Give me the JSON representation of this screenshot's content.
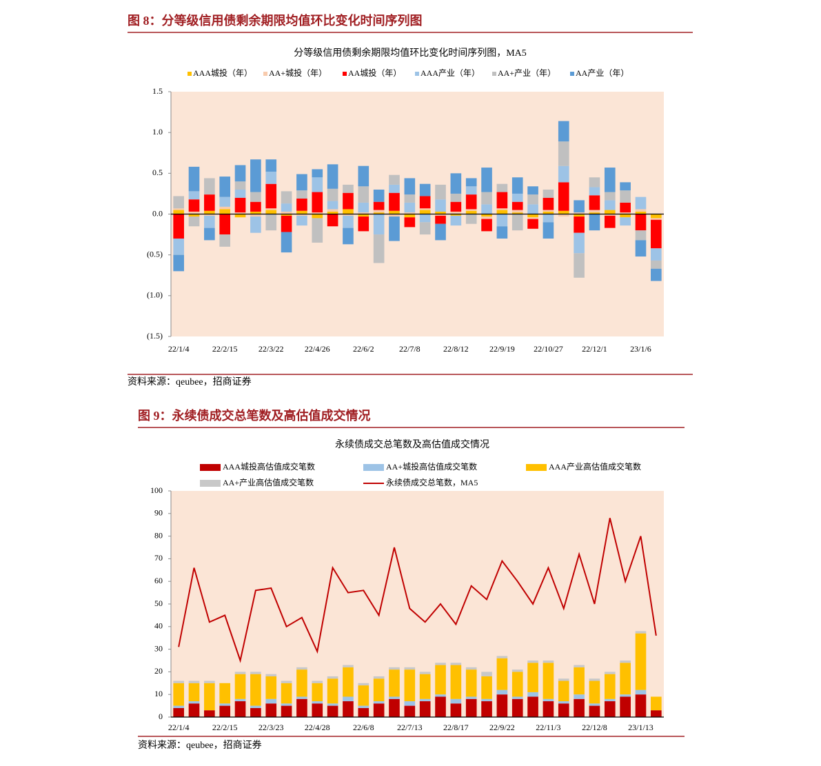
{
  "chart_data": [
    {
      "type": "bar",
      "stacked": true,
      "figure_label": "图 8：分等级信用债剩余期限均值环比变化时间序列图",
      "title": "分等级信用债剩余期限均值环比变化时间序列图，MA5",
      "source": "资料来源：qeubee，招商证券",
      "background": "#fbe5d6",
      "categories": [
        "22/1/4",
        null,
        null,
        "22/2/15",
        null,
        null,
        "22/3/22",
        null,
        null,
        "22/4/26",
        null,
        null,
        "22/6/2",
        null,
        null,
        "22/7/8",
        null,
        null,
        "22/8/12",
        null,
        null,
        "22/9/19",
        null,
        null,
        "22/10/27",
        null,
        null,
        "22/12/1",
        null,
        null,
        "23/1/6",
        null
      ],
      "ylim": [
        -1.5,
        1.5
      ],
      "yticks": [
        {
          "value": -1.5,
          "label": "(1.5)"
        },
        {
          "value": -1,
          "label": "(1.0)"
        },
        {
          "value": -0.5,
          "label": "(0.5)"
        },
        {
          "value": 0,
          "label": "0.0"
        },
        0.5,
        {
          "value": 1,
          "label": "1.0"
        },
        1.5
      ],
      "series": [
        {
          "name": "AAA城投（年）",
          "color": "#ffc000",
          "values": [
            0.05,
            -0.03,
            0.04,
            0.06,
            -0.04,
            0.03,
            0.05,
            -0.02,
            0.04,
            -0.05,
            0.03,
            0.06,
            -0.03,
            0.02,
            0.04,
            -0.04,
            0.05,
            0.03,
            -0.02,
            0.04,
            -0.03,
            0.05,
            0.02,
            -0.04,
            0.03,
            0.04,
            -0.03,
            0.02,
            0.05,
            -0.04,
            0.03,
            -0.05
          ]
        },
        {
          "name": "AA+城投（年）",
          "color": "#f8cbad",
          "values": [
            0.02,
            0.03,
            -0.02,
            0.03,
            0.02,
            -0.03,
            0.02,
            0.03,
            -0.02,
            0.02,
            0.03,
            -0.02,
            0.02,
            0.03,
            -0.03,
            0.02,
            0.02,
            -0.02,
            0.03,
            0.02,
            -0.03,
            0.02,
            0.03,
            -0.02,
            0.02,
            -0.03,
            0.02,
            0.03,
            -0.02,
            0.02,
            0.03,
            -0.02
          ]
        },
        {
          "name": "AA城投（年）",
          "color": "#ff0000",
          "values": [
            -0.3,
            0.15,
            0.2,
            -0.25,
            0.18,
            0.12,
            0.3,
            -0.2,
            0.15,
            0.25,
            -0.15,
            0.2,
            -0.18,
            0.1,
            0.22,
            -0.12,
            0.15,
            -0.1,
            0.12,
            0.18,
            -0.15,
            0.2,
            0.1,
            -0.12,
            0.15,
            0.35,
            -0.2,
            0.18,
            -0.15,
            0.12,
            -0.2,
            -0.35
          ]
        },
        {
          "name": "AAA产业（年）",
          "color": "#9dc3e6",
          "values": [
            -0.2,
            0.1,
            -0.15,
            0.12,
            0.1,
            -0.2,
            0.15,
            0.1,
            -0.12,
            0.18,
            0.1,
            -0.15,
            0.12,
            -0.25,
            0.1,
            0.12,
            -0.1,
            0.15,
            -0.12,
            0.1,
            0.12,
            -0.15,
            0.1,
            0.12,
            -0.1,
            0.2,
            -0.25,
            0.1,
            0.12,
            -0.1,
            0.15,
            -0.15
          ]
        },
        {
          "name": "AA+产业（年）",
          "color": "#c0c0c0",
          "values": [
            0.15,
            -0.12,
            0.2,
            -0.15,
            0.1,
            0.12,
            -0.2,
            0.15,
            0.1,
            -0.3,
            0.15,
            0.1,
            0.2,
            -0.35,
            0.12,
            0.1,
            -0.15,
            0.18,
            0.1,
            -0.12,
            0.15,
            0.1,
            -0.2,
            0.12,
            0.1,
            0.3,
            -0.3,
            0.12,
            0.1,
            0.15,
            -0.12,
            -0.1
          ]
        },
        {
          "name": "AA产业（年）",
          "color": "#5b9bd5",
          "values": [
            -0.2,
            0.3,
            -0.15,
            0.25,
            0.2,
            0.4,
            0.15,
            -0.25,
            0.2,
            0.1,
            0.3,
            -0.2,
            0.25,
            0.15,
            -0.3,
            0.2,
            0.15,
            -0.2,
            0.25,
            0.1,
            0.3,
            -0.15,
            0.2,
            0.1,
            -0.2,
            0.25,
            0.15,
            -0.2,
            0.3,
            0.1,
            -0.2,
            -0.15
          ]
        }
      ]
    },
    {
      "type": "bar",
      "stacked": true,
      "figure_label": "图 9：永续债成交总笔数及高估值成交情况",
      "title": "永续债成交总笔数及高估值成交情况",
      "source": "资料来源：qeubee，招商证券",
      "background": "#fbe5d6",
      "categories": [
        "22/1/4",
        null,
        null,
        "22/2/15",
        null,
        null,
        "22/3/23",
        null,
        null,
        "22/4/28",
        null,
        null,
        "22/6/8",
        null,
        null,
        "22/7/13",
        null,
        null,
        "22/8/17",
        null,
        null,
        "22/9/22",
        null,
        null,
        "22/11/3",
        null,
        null,
        "22/12/8",
        null,
        null,
        "23/1/13",
        null
      ],
      "ylim": [
        0,
        100
      ],
      "yticks": [
        0,
        10,
        20,
        30,
        40,
        50,
        60,
        70,
        80,
        90,
        100
      ],
      "series": [
        {
          "name": "AAA城投高估值成交笔数",
          "color": "#c00000",
          "values": [
            4,
            6,
            3,
            5,
            7,
            4,
            6,
            5,
            8,
            6,
            5,
            7,
            4,
            6,
            8,
            5,
            7,
            9,
            6,
            8,
            7,
            10,
            8,
            9,
            7,
            6,
            8,
            5,
            7,
            9,
            10,
            3
          ]
        },
        {
          "name": "AA+城投高估值成交笔数",
          "color": "#9dc3e6",
          "values": [
            1,
            1,
            0,
            1,
            1,
            1,
            2,
            1,
            1,
            1,
            1,
            2,
            1,
            1,
            1,
            2,
            1,
            1,
            2,
            1,
            1,
            2,
            1,
            2,
            1,
            1,
            2,
            1,
            1,
            1,
            2,
            0
          ]
        },
        {
          "name": "AAA产业高估值成交笔数",
          "color": "#ffc000",
          "values": [
            10,
            8,
            12,
            9,
            11,
            14,
            10,
            9,
            12,
            8,
            11,
            13,
            9,
            10,
            12,
            14,
            11,
            13,
            15,
            12,
            10,
            14,
            11,
            13,
            16,
            9,
            12,
            10,
            11,
            14,
            25,
            6
          ]
        },
        {
          "name": "AA+产业高估值成交笔数",
          "color": "#c8c8c8",
          "values": [
            1,
            1,
            1,
            0,
            1,
            1,
            1,
            1,
            1,
            1,
            1,
            1,
            1,
            1,
            1,
            1,
            1,
            1,
            1,
            1,
            2,
            1,
            1,
            1,
            1,
            1,
            1,
            1,
            1,
            1,
            1,
            0
          ]
        },
        {
          "name": "永续债成交总笔数，MA5",
          "color": "#c00000",
          "type": "line",
          "values": [
            31,
            66,
            42,
            45,
            25,
            56,
            57,
            40,
            44,
            29,
            66,
            55,
            56,
            45,
            75,
            48,
            42,
            50,
            41,
            58,
            52,
            69,
            60,
            50,
            66,
            48,
            72,
            50,
            88,
            60,
            80,
            36
          ]
        }
      ]
    }
  ]
}
